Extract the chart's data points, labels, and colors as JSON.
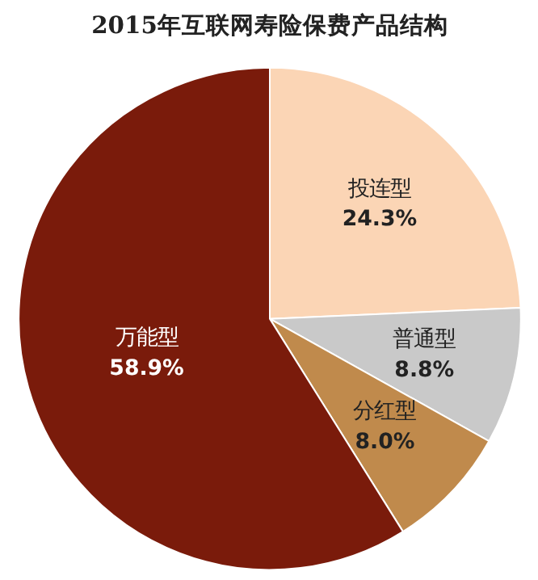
{
  "chart_data": {
    "type": "pie",
    "title": "2015年互联网寿险保费产品结构",
    "categories": [
      "投连型",
      "普通型",
      "分红型",
      "万能型"
    ],
    "values": [
      24.3,
      8.8,
      8.0,
      58.9
    ],
    "colors": [
      "#fbd5b5",
      "#c9c9c9",
      "#c08a4c",
      "#7a1b0b"
    ],
    "value_labels": [
      "24.3%",
      "8.8%",
      "8.0%",
      "58.9%"
    ]
  }
}
